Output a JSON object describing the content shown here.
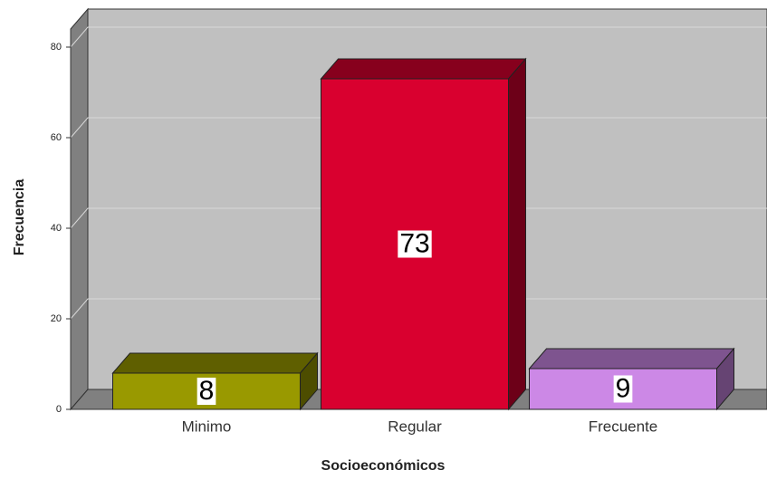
{
  "chart_data": {
    "type": "bar3d",
    "x_label": "Socioeconómicos",
    "y_label": "Frecuencia",
    "categories": [
      "Minimo",
      "Regular",
      "Frecuente"
    ],
    "values": [
      8,
      73,
      9
    ],
    "colors": [
      "#999900",
      "#d9002f",
      "#cc88e6"
    ],
    "ylim": [
      0,
      84
    ],
    "yticks": [
      0,
      20,
      40,
      60,
      80
    ],
    "grid": true
  }
}
